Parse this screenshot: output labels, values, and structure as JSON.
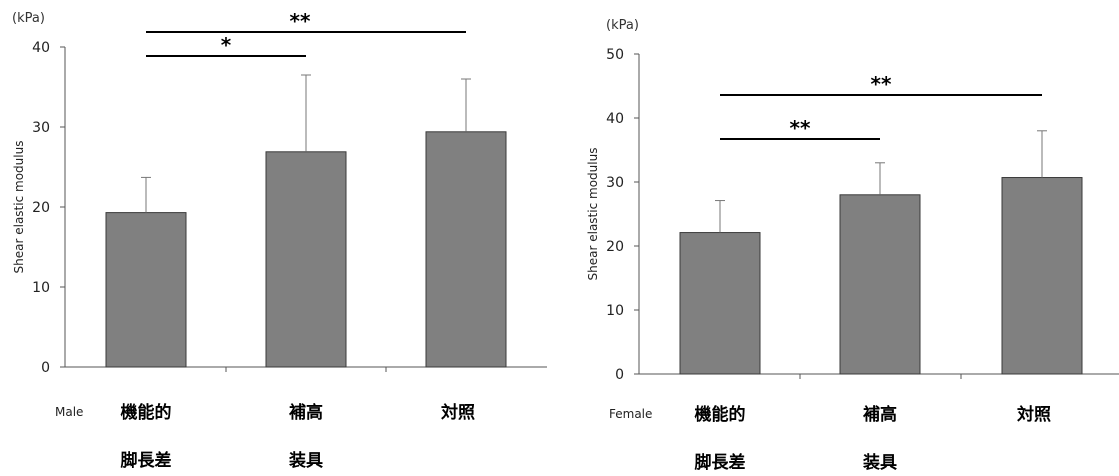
{
  "chart_data": [
    {
      "type": "bar",
      "group_label": "Male",
      "unit_label": "(kPa)",
      "ylabel": "Shear elastic modulus",
      "ylim": [
        0,
        40
      ],
      "yticks": [
        0,
        10,
        20,
        30,
        40
      ],
      "categories": [
        [
          "機能的",
          "脚長差"
        ],
        [
          "補高",
          "装具"
        ],
        [
          "対照"
        ]
      ],
      "values": [
        19.3,
        26.9,
        29.4
      ],
      "errors": [
        4.4,
        9.6,
        6.6
      ],
      "bar_color": "#808080",
      "significance": [
        {
          "from": 0,
          "to": 2,
          "label": "**"
        },
        {
          "from": 0,
          "to": 1,
          "label": "*"
        }
      ]
    },
    {
      "type": "bar",
      "group_label": "Female",
      "unit_label": "(kPa)",
      "ylabel": "Shear elastic modulus",
      "ylim": [
        0,
        50
      ],
      "yticks": [
        0,
        10,
        20,
        30,
        40,
        50
      ],
      "categories": [
        [
          "機能的",
          "脚長差"
        ],
        [
          "補高",
          "装具"
        ],
        [
          "対照"
        ]
      ],
      "values": [
        22.1,
        28.0,
        30.7
      ],
      "errors": [
        5.0,
        5.0,
        7.3
      ],
      "bar_color": "#808080",
      "significance": [
        {
          "from": 0,
          "to": 2,
          "label": "**"
        },
        {
          "from": 0,
          "to": 1,
          "label": "**"
        }
      ]
    }
  ]
}
